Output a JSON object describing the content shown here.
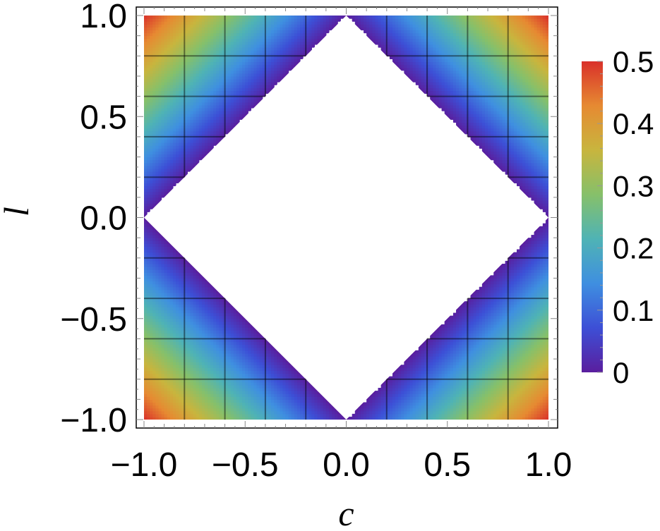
{
  "chart_data": {
    "type": "heatmap",
    "title": "",
    "xlabel": "c",
    "ylabel": "l",
    "xlim": [
      -1.0,
      1.0
    ],
    "ylim": [
      -1.0,
      1.0
    ],
    "x_ticks": [
      "−1.0",
      "−0.5",
      "0.0",
      "0.5",
      "1.0"
    ],
    "x_tick_values": [
      -1.0,
      -0.5,
      0.0,
      0.5,
      1.0
    ],
    "y_ticks": [
      "1.0",
      "0.5",
      "0.0",
      "−0.5",
      "−1.0"
    ],
    "y_tick_values": [
      1.0,
      0.5,
      0.0,
      -0.5,
      -1.0
    ],
    "function": "value = (|c| + |l| - 1) / 2, defined only where |c| + |l| >= 1; blank (white) inside the diamond |c| + |l| < 1",
    "z_range": [
      0,
      0.5
    ],
    "corner_values": [
      {
        "c": -1.0,
        "l": 1.0,
        "value": 0.5
      },
      {
        "c": 1.0,
        "l": 1.0,
        "value": 0.5
      },
      {
        "c": -1.0,
        "l": -1.0,
        "value": 0.5
      },
      {
        "c": 1.0,
        "l": -1.0,
        "value": 0.5
      }
    ],
    "grid": true,
    "grid_spacing": 0.2,
    "colorbar": {
      "labels": [
        "0.5",
        "0.4",
        "0.3",
        "0.2",
        "0.1",
        "0"
      ],
      "values": [
        0.5,
        0.4,
        0.3,
        0.2,
        0.1,
        0
      ],
      "colormap": "rainbow",
      "colors": [
        "#5a1e9e",
        "#3d4fd6",
        "#3f8fe0",
        "#4fb3b5",
        "#86c06a",
        "#c8b53e",
        "#e68a32",
        "#d9302a"
      ],
      "placement": "right"
    }
  }
}
